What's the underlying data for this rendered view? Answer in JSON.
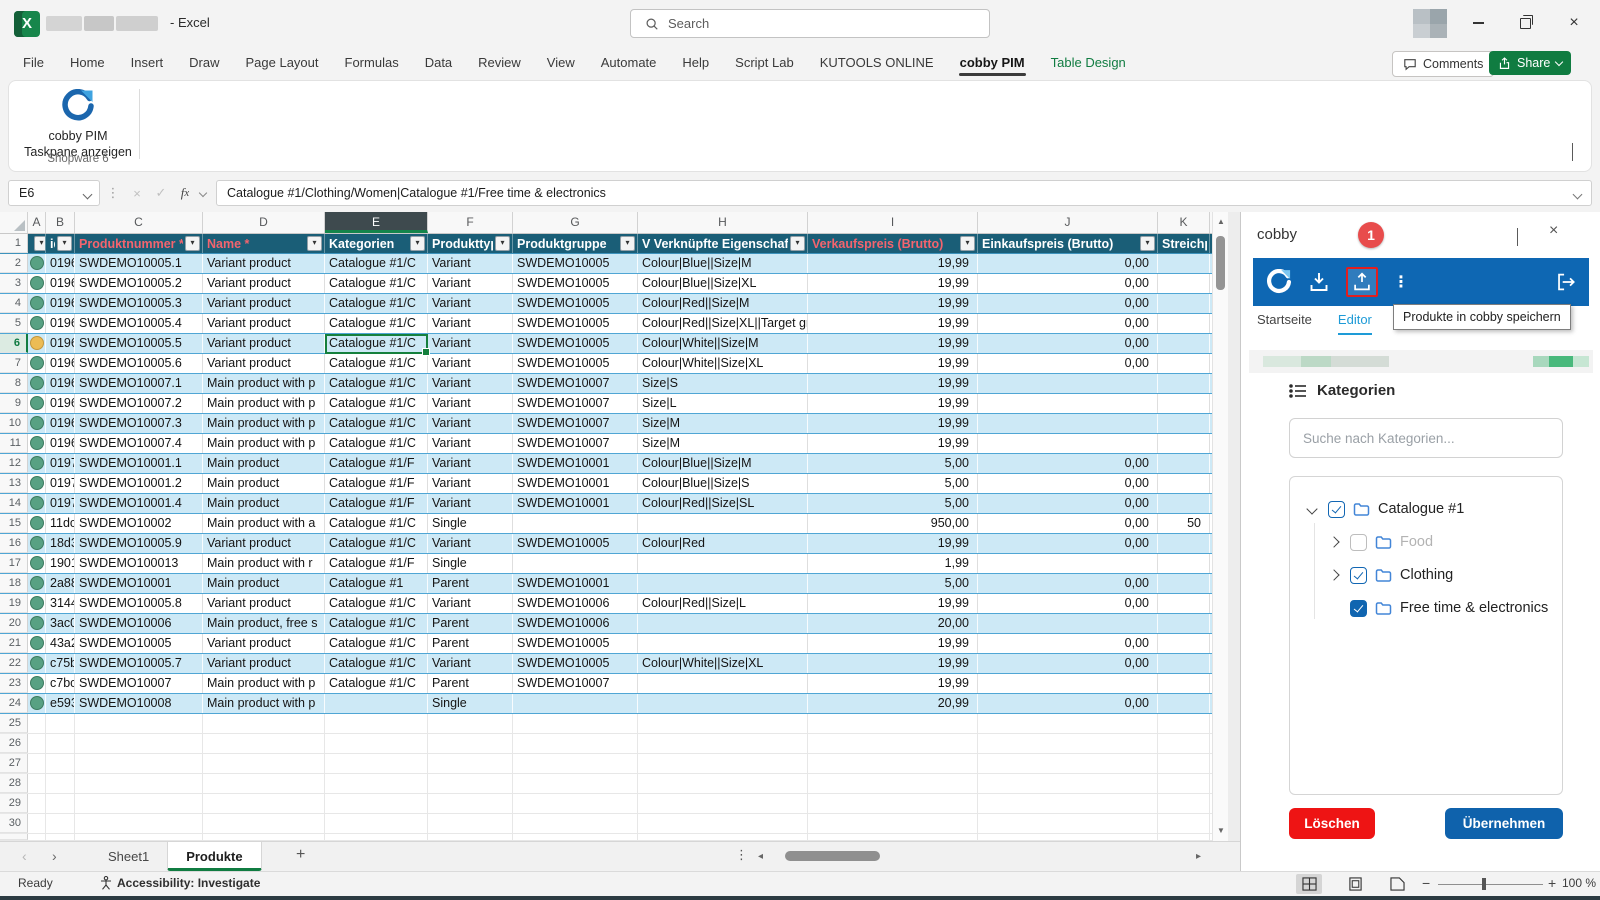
{
  "title_bar": {
    "app_title": "- Excel",
    "search_placeholder": "Search"
  },
  "ribbon": {
    "tabs": [
      "File",
      "Home",
      "Insert",
      "Draw",
      "Page Layout",
      "Formulas",
      "Data",
      "Review",
      "View",
      "Automate",
      "Help",
      "Script Lab",
      "KUTOOLS ONLINE",
      "cobby PIM",
      "Table Design"
    ],
    "active_tab": "cobby PIM",
    "contextual_tab": "Table Design",
    "comments_label": "Comments",
    "share_label": "Share",
    "addin_button": {
      "line1": "cobby PIM",
      "line2": "Taskpane anzeigen"
    },
    "group_label": "Shopware 6"
  },
  "formula_bar": {
    "cell_ref": "E6",
    "formula": "Catalogue #1/Clothing/Women|Catalogue #1/Free time & electronics"
  },
  "grid": {
    "column_letters": [
      "A",
      "B",
      "C",
      "D",
      "E",
      "F",
      "G",
      "H",
      "I",
      "J",
      "K"
    ],
    "selected_column": "E",
    "selected_row": 6,
    "headers": [
      {
        "label": "i",
        "filter": true,
        "required": false
      },
      {
        "label": "id",
        "filter": true,
        "required": false
      },
      {
        "label": "Produktnummer *",
        "filter": true,
        "required": true
      },
      {
        "label": "Name *",
        "filter": true,
        "required": true
      },
      {
        "label": "Kategorien",
        "filter": true,
        "required": false
      },
      {
        "label": "Produkttyp",
        "filter": true,
        "required": false
      },
      {
        "label": "Produktgruppe",
        "filter": true,
        "required": false
      },
      {
        "label": "V Verknüpfte Eigenschaften",
        "filter": true,
        "required": false
      },
      {
        "label": "Verkaufspreis (Brutto)",
        "filter": true,
        "required": true
      },
      {
        "label": "Einkaufspreis (Brutto)",
        "filter": true,
        "required": false
      },
      {
        "label": "Streichpr",
        "filter": false,
        "required": false
      }
    ],
    "rows": [
      {
        "n": 2,
        "status": "green",
        "cells": [
          "0196",
          "SWDEMO10005.1",
          "Variant product",
          "Catalogue #1/C",
          "Variant",
          "SWDEMO10005",
          "Colour|Blue||Size|M",
          "19,99",
          "0,00",
          ""
        ]
      },
      {
        "n": 3,
        "status": "green",
        "cells": [
          "0196",
          "SWDEMO10005.2",
          "Variant product",
          "Catalogue #1/C",
          "Variant",
          "SWDEMO10005",
          "Colour|Blue||Size|XL",
          "19,99",
          "0,00",
          ""
        ]
      },
      {
        "n": 4,
        "status": "green",
        "cells": [
          "0196",
          "SWDEMO10005.3",
          "Variant product",
          "Catalogue #1/C",
          "Variant",
          "SWDEMO10005",
          "Colour|Red||Size|M",
          "19,99",
          "0,00",
          ""
        ]
      },
      {
        "n": 5,
        "status": "green",
        "cells": [
          "0196",
          "SWDEMO10005.4",
          "Variant product",
          "Catalogue #1/C",
          "Variant",
          "SWDEMO10005",
          "Colour|Red||Size|XL||Target gr",
          "19,99",
          "0,00",
          ""
        ]
      },
      {
        "n": 6,
        "status": "yellow",
        "cells": [
          "0196",
          "SWDEMO10005.5",
          "Variant product",
          "Catalogue #1/C",
          "Variant",
          "SWDEMO10005",
          "Colour|White||Size|M",
          "19,99",
          "0,00",
          ""
        ]
      },
      {
        "n": 7,
        "status": "green",
        "cells": [
          "0196",
          "SWDEMO10005.6",
          "Variant product",
          "Catalogue #1/C",
          "Variant",
          "SWDEMO10005",
          "Colour|White||Size|XL",
          "19,99",
          "0,00",
          ""
        ]
      },
      {
        "n": 8,
        "status": "green",
        "cells": [
          "0196",
          "SWDEMO10007.1",
          "Main product with p",
          "Catalogue #1/C",
          "Variant",
          "SWDEMO10007",
          "Size|S",
          "19,99",
          "",
          ""
        ]
      },
      {
        "n": 9,
        "status": "green",
        "cells": [
          "0196",
          "SWDEMO10007.2",
          "Main product with p",
          "Catalogue #1/C",
          "Variant",
          "SWDEMO10007",
          "Size|L",
          "19,99",
          "",
          ""
        ]
      },
      {
        "n": 10,
        "status": "green",
        "cells": [
          "0196",
          "SWDEMO10007.3",
          "Main product with p",
          "Catalogue #1/C",
          "Variant",
          "SWDEMO10007",
          "Size|M",
          "19,99",
          "",
          ""
        ]
      },
      {
        "n": 11,
        "status": "green",
        "cells": [
          "0196",
          "SWDEMO10007.4",
          "Main product with p",
          "Catalogue #1/C",
          "Variant",
          "SWDEMO10007",
          "Size|M",
          "19,99",
          "",
          ""
        ]
      },
      {
        "n": 12,
        "status": "green",
        "cells": [
          "0197",
          "SWDEMO10001.1",
          "Main product",
          "Catalogue #1/F",
          "Variant",
          "SWDEMO10001",
          "Colour|Blue||Size|M",
          "5,00",
          "0,00",
          ""
        ]
      },
      {
        "n": 13,
        "status": "green",
        "cells": [
          "0197",
          "SWDEMO10001.2",
          "Main product",
          "Catalogue #1/F",
          "Variant",
          "SWDEMO10001",
          "Colour|Blue||Size|S",
          "5,00",
          "0,00",
          ""
        ]
      },
      {
        "n": 14,
        "status": "green",
        "cells": [
          "0197",
          "SWDEMO10001.4",
          "Main product",
          "Catalogue #1/F",
          "Variant",
          "SWDEMO10001",
          "Colour|Red||Size|SL",
          "5,00",
          "0,00",
          ""
        ]
      },
      {
        "n": 15,
        "status": "green",
        "cells": [
          "11dc",
          "SWDEMO10002",
          "Main product with a",
          "Catalogue #1/C",
          "Single",
          "",
          "",
          "950,00",
          "0,00",
          "50"
        ]
      },
      {
        "n": 16,
        "status": "green",
        "cells": [
          "18d3",
          "SWDEMO10005.9",
          "Variant product",
          "Catalogue #1/C",
          "Variant",
          "SWDEMO10005",
          "Colour|Red",
          "19,99",
          "0,00",
          ""
        ]
      },
      {
        "n": 17,
        "status": "green",
        "cells": [
          "1901",
          "SWDEMO100013",
          "Main product with r",
          "Catalogue #1/F",
          "Single",
          "",
          "",
          "1,99",
          "",
          ""
        ]
      },
      {
        "n": 18,
        "status": "green",
        "cells": [
          "2a88",
          "SWDEMO10001",
          "Main product",
          "Catalogue #1",
          "Parent",
          "SWDEMO10001",
          "",
          "5,00",
          "0,00",
          ""
        ]
      },
      {
        "n": 19,
        "status": "green",
        "cells": [
          "3144",
          "SWDEMO10005.8",
          "Variant product",
          "Catalogue #1/C",
          "Variant",
          "SWDEMO10006",
          "Colour|Red||Size|L",
          "19,99",
          "0,00",
          ""
        ]
      },
      {
        "n": 20,
        "status": "green",
        "cells": [
          "3ac0",
          "SWDEMO10006",
          "Main product, free s",
          "Catalogue #1/C",
          "Parent",
          "SWDEMO10006",
          "",
          "20,00",
          "",
          ""
        ]
      },
      {
        "n": 21,
        "status": "green",
        "cells": [
          "43a2",
          "SWDEMO10005",
          "Variant product",
          "Catalogue #1/C",
          "Parent",
          "SWDEMO10005",
          "",
          "19,99",
          "0,00",
          ""
        ]
      },
      {
        "n": 22,
        "status": "green",
        "cells": [
          "c75b",
          "SWDEMO10005.7",
          "Variant product",
          "Catalogue #1/C",
          "Variant",
          "SWDEMO10005",
          "Colour|White||Size|XL",
          "19,99",
          "0,00",
          ""
        ]
      },
      {
        "n": 23,
        "status": "green",
        "cells": [
          "c7bc",
          "SWDEMO10007",
          "Main product with p",
          "Catalogue #1/C",
          "Parent",
          "SWDEMO10007",
          "",
          "19,99",
          "",
          ""
        ]
      },
      {
        "n": 24,
        "status": "green",
        "cells": [
          "e593",
          "SWDEMO10008",
          "Main product with p",
          "",
          "Single",
          "",
          "",
          "20,99",
          "0,00",
          ""
        ]
      }
    ],
    "empty_row_numbers": [
      25,
      26,
      27,
      28,
      29,
      30
    ]
  },
  "sheet_bar": {
    "sheets": [
      {
        "label": "Sheet1",
        "active": false
      },
      {
        "label": "Produkte",
        "active": true
      }
    ]
  },
  "status_bar": {
    "ready": "Ready",
    "accessibility": "Accessibility: Investigate",
    "zoom_level": "100 %"
  },
  "panel": {
    "title": "cobby",
    "badge": "1",
    "tooltip": "Produkte in cobby speichern",
    "tabs": [
      {
        "label": "Startseite",
        "active": false
      },
      {
        "label": "Editor",
        "active": true
      }
    ],
    "section": {
      "title": "Kategorien",
      "search_placeholder": "Suche nach Kategorien..."
    },
    "tree": [
      {
        "label": "Catalogue #1",
        "level": 0,
        "chevron": "down",
        "checkbox": "checked",
        "muted": false
      },
      {
        "label": "Food",
        "level": 1,
        "chevron": "right",
        "checkbox": "unchecked",
        "muted": true
      },
      {
        "label": "Clothing",
        "level": 1,
        "chevron": "right",
        "checkbox": "checked",
        "muted": false
      },
      {
        "label": "Free time & electronics",
        "level": 1,
        "chevron": "none",
        "checkbox": "checked-solid",
        "muted": false
      }
    ],
    "buttons": {
      "delete": "Löschen",
      "apply": "Übernehmen"
    }
  },
  "colors": {
    "excel_green": "#107c41",
    "table_header_teal": "#1a5e77",
    "required_red": "#f4646e",
    "band_blue": "#cde9f6",
    "panel_toolbar_blue": "#0e67b3",
    "editor_tab_blue": "#1e9bd7",
    "delete_red": "#ee1414",
    "apply_blue": "#0f62ac",
    "badge_red": "#e84c4c",
    "status_green": "#58a183",
    "status_yellow": "#ecbc55",
    "upload_highlight_red": "#e21e1e"
  }
}
